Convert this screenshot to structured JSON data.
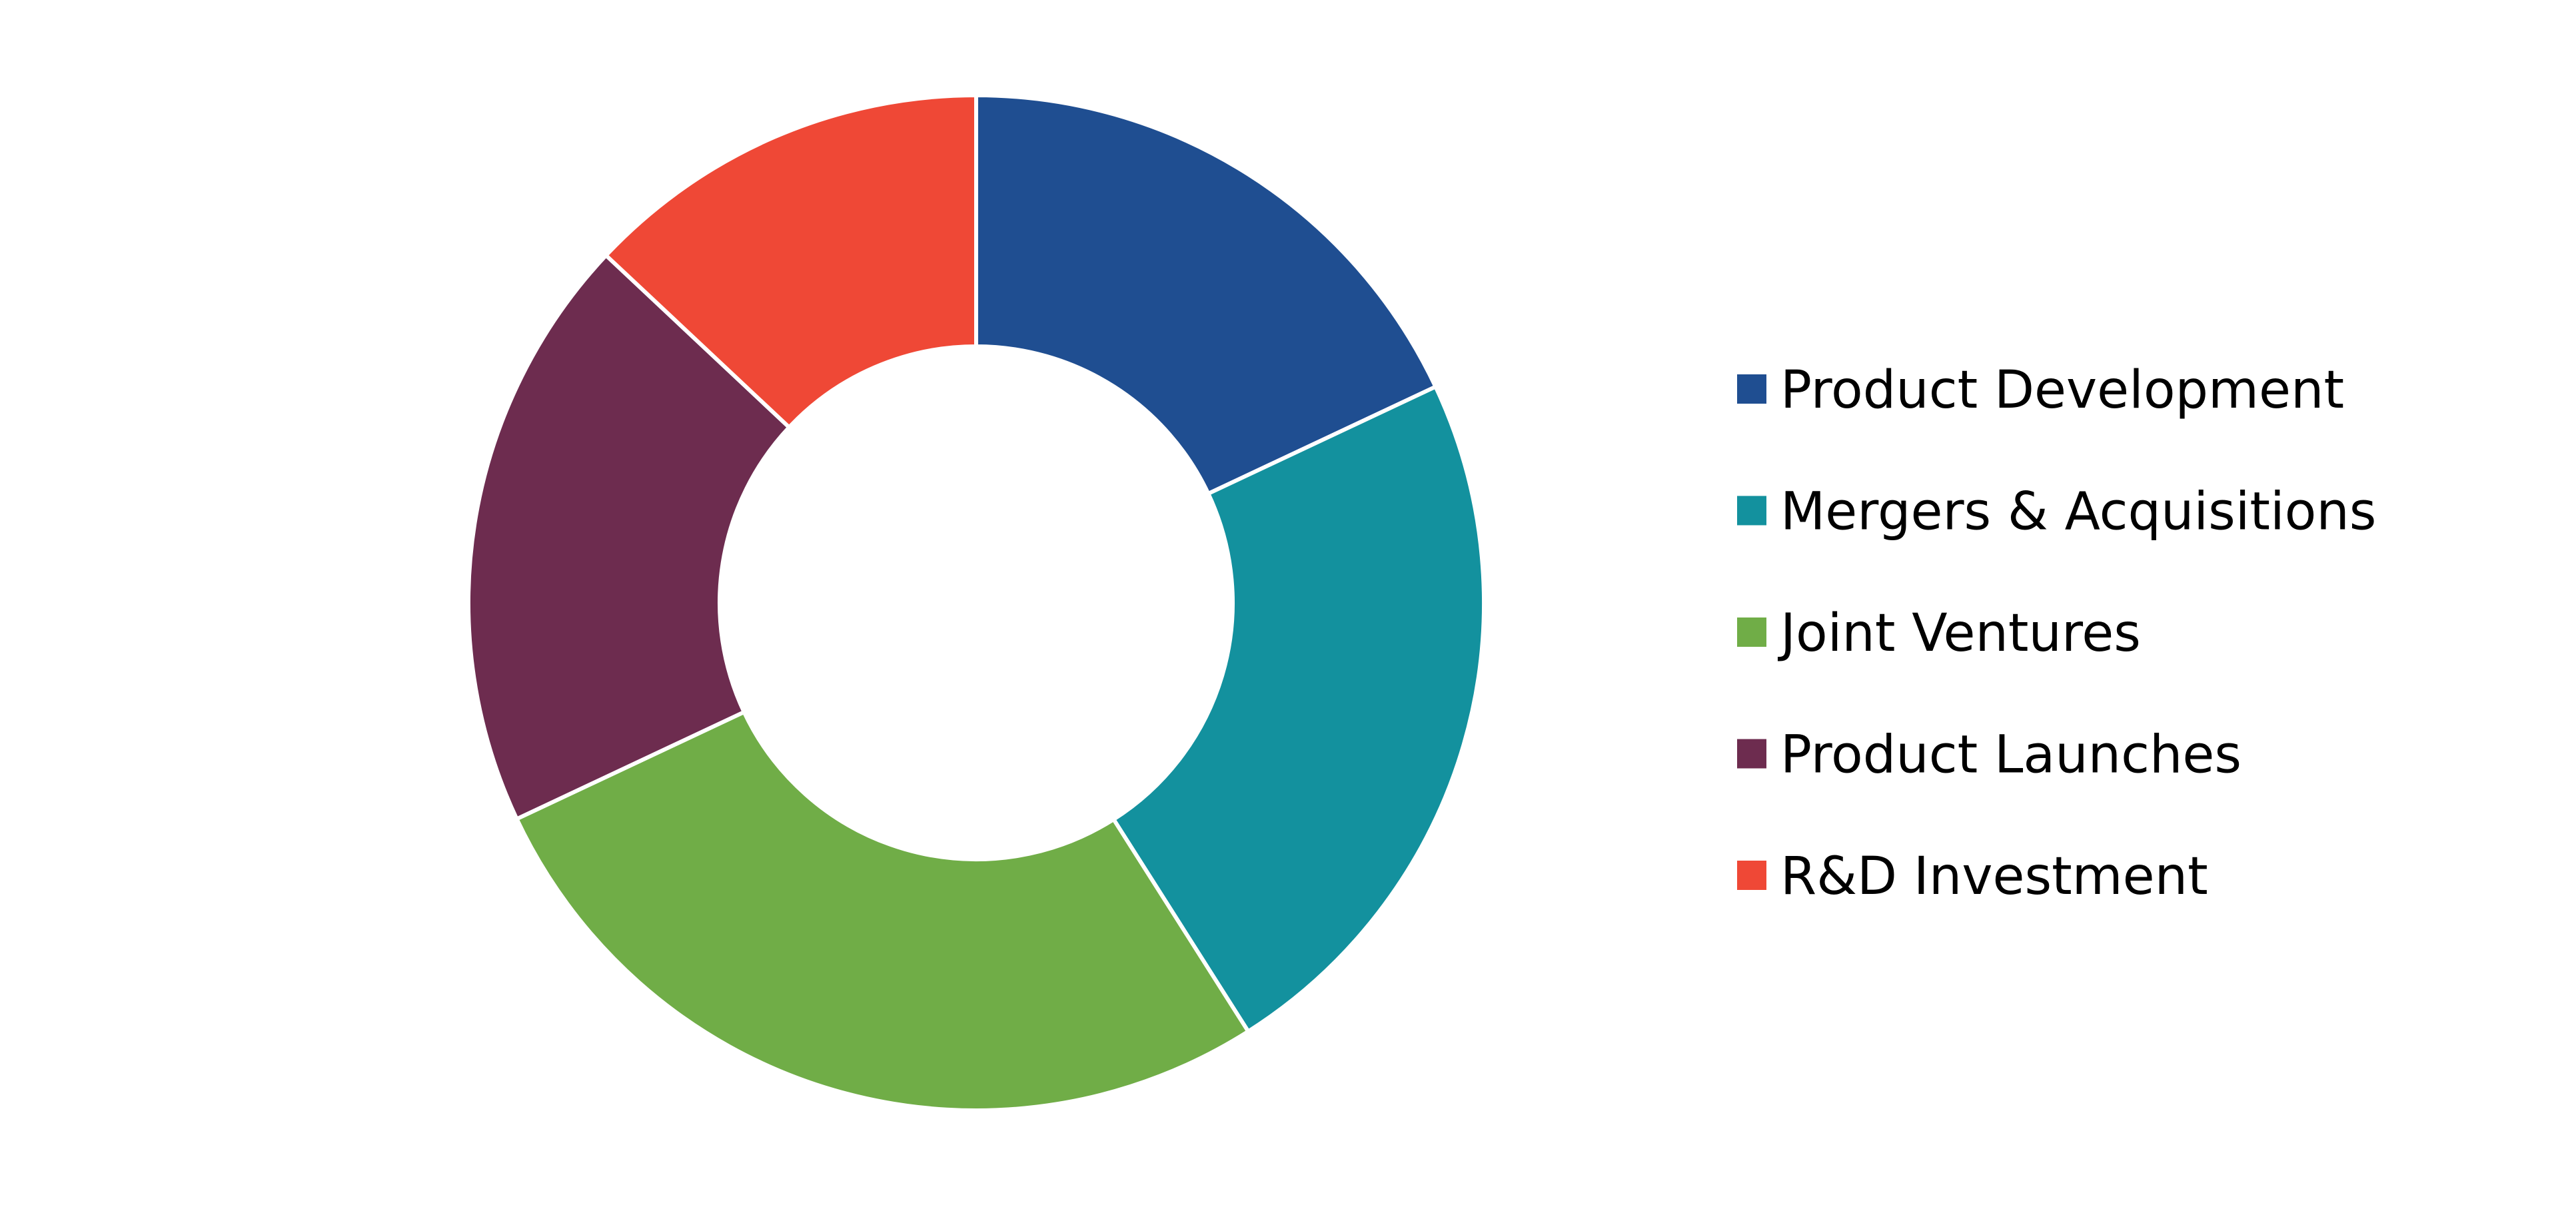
{
  "chart_data": {
    "type": "pie",
    "variant": "donut",
    "title": "",
    "categories": [
      "Product Development",
      "Mergers & Acquisitions",
      "Joint Ventures",
      "Product Launches",
      "R&D Investment"
    ],
    "values": [
      18,
      23,
      27,
      19,
      13
    ],
    "colors": [
      "#1F4E91",
      "#13919E",
      "#70AD47",
      "#6D2C4F",
      "#EF4836"
    ],
    "start_angle": "top, clockwise",
    "legend_position": "right"
  }
}
